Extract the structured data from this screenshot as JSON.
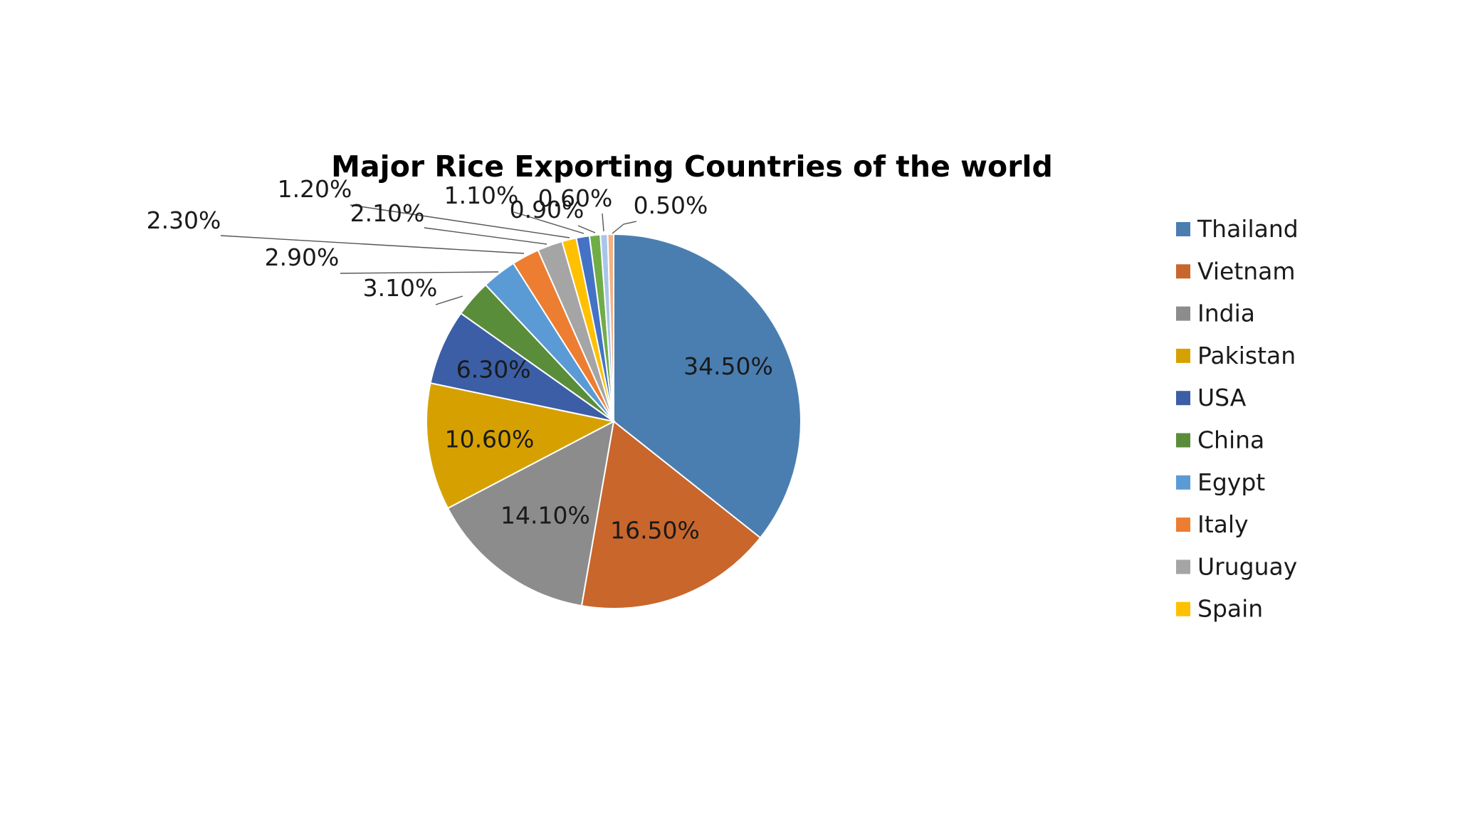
{
  "chart_data": {
    "type": "pie",
    "title": "Major Rice Exporting Countries of the world",
    "legend_position": "right",
    "categories": [
      "Thailand",
      "Vietnam",
      "India",
      "Pakistan",
      "USA",
      "China",
      "Egypt",
      "Italy",
      "Uruguay",
      "Spain",
      "",
      "",
      "",
      ""
    ],
    "values": [
      34.5,
      16.5,
      14.1,
      10.6,
      6.3,
      3.1,
      2.9,
      2.3,
      2.1,
      1.2,
      1.1,
      0.9,
      0.6,
      0.5
    ],
    "labels": [
      "34.50%",
      "16.50%",
      "14.10%",
      "10.60%",
      "6.30%",
      "3.10%",
      "2.90%",
      "2.30%",
      "2.10%",
      "1.20%",
      "1.10%",
      "0.90%",
      "0.60%",
      "0.50%"
    ],
    "colors": [
      "#4a7eb0",
      "#c8662c",
      "#8c8c8c",
      "#d6a100",
      "#3b5ea6",
      "#5a8d3a",
      "#5b9bd5",
      "#ed7d31",
      "#a5a5a5",
      "#ffc000",
      "#4472c4",
      "#70ad47",
      "#a9c5e9",
      "#f4b183"
    ],
    "legend": [
      "Thailand",
      "Vietnam",
      "India",
      "Pakistan",
      "USA",
      "China",
      "Egypt",
      "Italy",
      "Uruguay",
      "Spain"
    ]
  }
}
